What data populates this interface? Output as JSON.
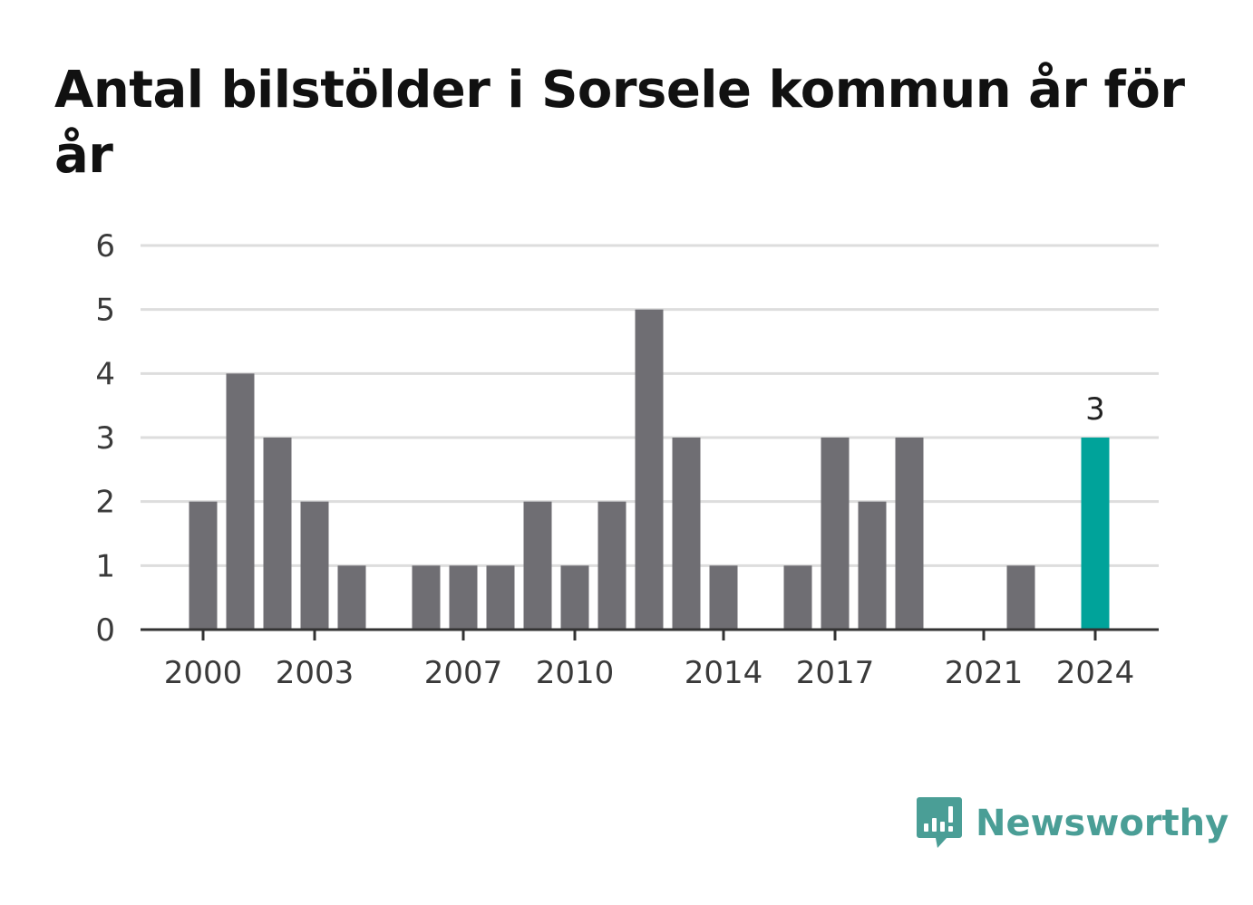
{
  "title": "Antal bilstölder i Sorsele kommun år för år",
  "brand": {
    "name": "Newsworthy",
    "icon": "newsworthy-logo-icon",
    "color": "#4a9e96"
  },
  "colors": {
    "bar": "#6f6e73",
    "highlight": "#00a39a",
    "grid": "#dddddd",
    "axis": "#333333"
  },
  "chart_data": {
    "type": "bar",
    "title": "Antal bilstölder i Sorsele kommun år för år",
    "xlabel": "",
    "ylabel": "",
    "categories": [
      "2000",
      "2001",
      "2002",
      "2003",
      "2004",
      "2005",
      "2006",
      "2007",
      "2008",
      "2009",
      "2010",
      "2011",
      "2012",
      "2013",
      "2014",
      "2015",
      "2016",
      "2017",
      "2018",
      "2019",
      "2020",
      "2021",
      "2022",
      "2023",
      "2024"
    ],
    "values": [
      2,
      4,
      3,
      2,
      1,
      0,
      1,
      1,
      1,
      2,
      1,
      2,
      5,
      3,
      1,
      0,
      1,
      3,
      2,
      3,
      0,
      0,
      1,
      0,
      3
    ],
    "x_tick_labels": [
      "2000",
      "2003",
      "2007",
      "2010",
      "2014",
      "2017",
      "2021",
      "2024"
    ],
    "y_ticks": [
      0,
      1,
      2,
      3,
      4,
      5,
      6
    ],
    "ylim": [
      0,
      6
    ],
    "grid": true,
    "legend": false,
    "highlight": {
      "category": "2024",
      "label": "3"
    }
  }
}
